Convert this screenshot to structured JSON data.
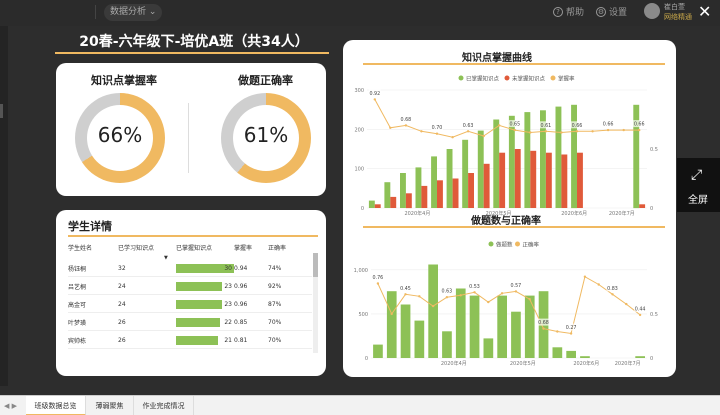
{
  "topbar": {
    "data_analysis": "数据分析",
    "help": "帮助",
    "settings": "设置",
    "user_name": "崔白萱",
    "user_role": "网络精通"
  },
  "title": "20春-六年级下-培优A班（共34人）",
  "rates": {
    "mastery_label": "知识点掌握率",
    "mastery_value": "66%",
    "mastery_pct": 66,
    "accuracy_label": "做题正确率",
    "accuracy_value": "61%",
    "accuracy_pct": 61
  },
  "students": {
    "title": "学生详情",
    "columns": [
      "学生姓名",
      "已学习知识点",
      "已掌握知识点",
      "掌握率",
      "正确率"
    ],
    "rows": [
      {
        "name": "杨钰桐",
        "learned": "32",
        "mastered": "30",
        "mastery": "0.94",
        "accuracy": "74%"
      },
      {
        "name": "吕艺桐",
        "learned": "24",
        "mastered": "23",
        "mastery": "0.96",
        "accuracy": "92%"
      },
      {
        "name": "高金可",
        "learned": "24",
        "mastered": "23",
        "mastery": "0.96",
        "accuracy": "87%"
      },
      {
        "name": "叶梦璜",
        "learned": "26",
        "mastered": "22",
        "mastery": "0.85",
        "accuracy": "70%"
      },
      {
        "name": "宾帅栋",
        "learned": "26",
        "mastered": "21",
        "mastery": "0.81",
        "accuracy": "70%"
      }
    ]
  },
  "fullscreen": "全屏",
  "tabs": [
    "班级数据总览",
    "薄弱聚焦",
    "作业完成情况"
  ],
  "colors": {
    "accent": "#f0b961",
    "green": "#8dc156",
    "red": "#e05a3a",
    "gray": "#cfcfcf"
  },
  "chart_data": [
    {
      "type": "bar",
      "title": "知识点掌握曲线",
      "legend": [
        "已掌握知识点",
        "未掌握知识点",
        "掌握率"
      ],
      "x_ticks": [
        "2020年4月",
        "2020年5月",
        "2020年6月",
        "2020年7月"
      ],
      "left_ticks": [
        "0",
        "100",
        "200",
        "300"
      ],
      "right_ticks": [
        "0",
        "0.5"
      ],
      "ylim": [
        0,
        320
      ],
      "y2lim": [
        0,
        1
      ],
      "series": [
        {
          "name": "已掌握知识点",
          "values": [
            20,
            70,
            95,
            110,
            140,
            160,
            185,
            210,
            240,
            250,
            260,
            265,
            275,
            280,
            0,
            0,
            0,
            280
          ]
        },
        {
          "name": "未掌握知识点",
          "values": [
            10,
            30,
            40,
            60,
            75,
            80,
            95,
            120,
            150,
            160,
            155,
            150,
            145,
            150,
            0,
            0,
            0,
            10
          ]
        },
        {
          "name": "掌握率",
          "values": [
            0.92,
            0.68,
            0.7,
            0.65,
            0.63,
            0.6,
            0.65,
            0.61,
            0.7,
            0.66,
            0.64,
            0.65,
            0.64,
            0.65,
            0.65,
            0.66,
            0.66,
            0.66
          ]
        }
      ],
      "point_labels": [
        "0.92",
        "0.68",
        "0.70",
        "0.63",
        "0.65",
        "0.61",
        "0.66",
        "0.66",
        "0.66"
      ]
    },
    {
      "type": "bar",
      "title": "做题数与正确率",
      "legend": [
        "做题数",
        "正确率"
      ],
      "x_ticks": [
        "2020年4月",
        "2020年5月",
        "2020年6月",
        "2020年7月"
      ],
      "left_ticks": [
        "0",
        "500",
        "1,000"
      ],
      "right_ticks": [
        "0",
        "0.5"
      ],
      "ylim": [
        0,
        1100
      ],
      "y2lim": [
        0,
        1
      ],
      "series": [
        {
          "name": "做题数",
          "values": [
            150,
            750,
            600,
            420,
            1050,
            300,
            780,
            700,
            220,
            700,
            520,
            700,
            750,
            120,
            80,
            20,
            0,
            0,
            0,
            20
          ]
        },
        {
          "name": "正确率",
          "values": [
            0.76,
            0.45,
            0.65,
            0.63,
            0.53,
            0.62,
            0.64,
            0.67,
            0.57,
            0.66,
            0.68,
            0.6,
            0.3,
            0.27,
            0.25,
            0.83,
            0.75,
            0.65,
            0.55,
            0.44
          ]
        }
      ],
      "point_labels": [
        "0.76",
        "0.45",
        "0.63",
        "0.53",
        "0.57",
        "0.68",
        "0.27",
        "0.83",
        "0.44"
      ]
    }
  ]
}
